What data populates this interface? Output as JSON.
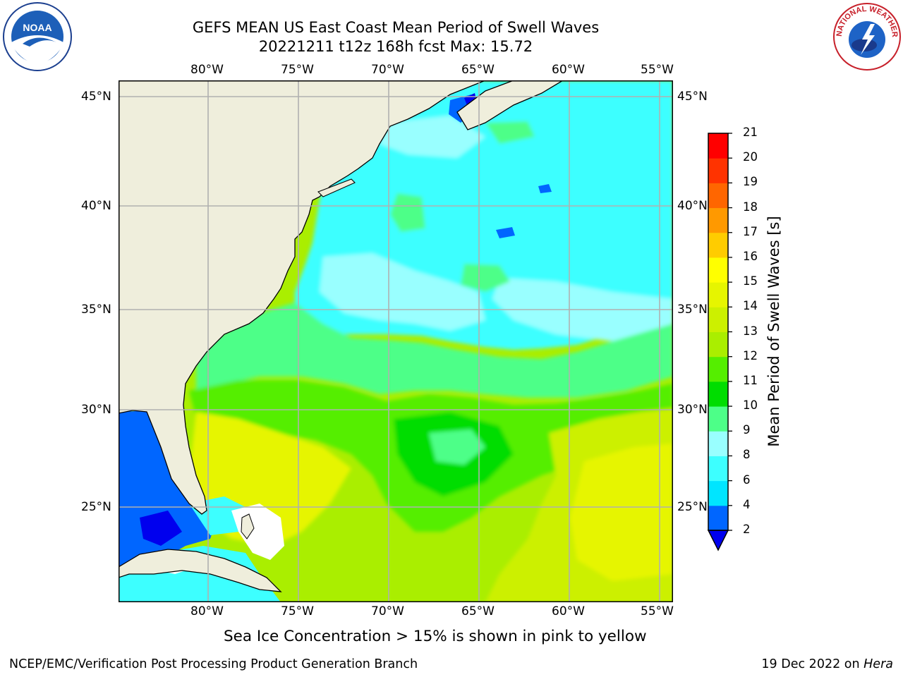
{
  "title": {
    "line1": "GEFS MEAN US East Coast Mean Period of Swell Waves",
    "line2": "20221211 t12z 168h fcst   Max: 15.72"
  },
  "map": {
    "lon_ticks": [
      "80°W",
      "75°W",
      "70°W",
      "65°W",
      "60°W",
      "55°W"
    ],
    "lat_ticks": [
      "45°N",
      "40°N",
      "35°N",
      "30°N",
      "25°N"
    ],
    "colors": {
      "land": "#efeedc",
      "ice_free_white": "#ffffff",
      "grid": "#b0b0b0"
    }
  },
  "colorbar": {
    "label": "Mean Period of Swell Waves [s]",
    "ticks": [
      "21",
      "20",
      "19",
      "18",
      "17",
      "16",
      "15",
      "14",
      "13",
      "12",
      "11",
      "10",
      "9",
      "8",
      "6",
      "4",
      "2"
    ],
    "levels": [
      2,
      4,
      6,
      8,
      9,
      10,
      11,
      12,
      13,
      14,
      15,
      16,
      17,
      18,
      19,
      20,
      21
    ],
    "colors": [
      "#0066ff",
      "#00e5ff",
      "#3dffff",
      "#99ffff",
      "#4dff88",
      "#00dd00",
      "#55ee00",
      "#aaee00",
      "#ccf000",
      "#e6f500",
      "#ffff00",
      "#ffcc00",
      "#ff9900",
      "#ff6600",
      "#ff3300",
      "#ff0000"
    ],
    "under_color": "#0000ee"
  },
  "note": "Sea Ice Concentration > 15% is shown in pink to yellow",
  "footer": {
    "left": "NCEP/EMC/Verification Post Processing Product Generation Branch",
    "date": "19 Dec 2022 on ",
    "machine": "Hera"
  },
  "logos": {
    "noaa": "NOAA",
    "nws": "NATIONAL WEATHER SERVICE"
  }
}
